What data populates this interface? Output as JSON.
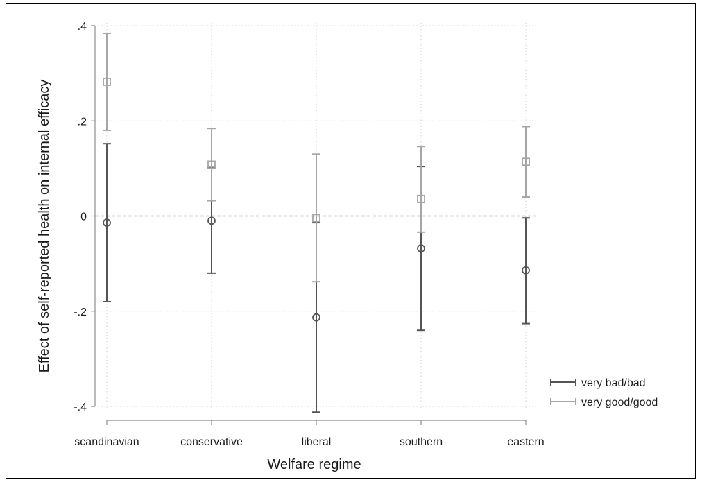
{
  "chart_data": {
    "type": "scatter",
    "subtype": "point-with-confidence-interval",
    "title": "",
    "xlabel": "Welfare regime",
    "ylabel": "Effect of self-reported health on internal efficacy",
    "categories": [
      "scandinavian",
      "conservative",
      "liberal",
      "southern",
      "eastern"
    ],
    "ylim": [
      -0.4,
      0.4
    ],
    "yticks": [
      -0.4,
      -0.2,
      0,
      0.2,
      0.4
    ],
    "ytick_labels": [
      "-.4",
      "-.2",
      "0",
      ".2",
      ".4"
    ],
    "reference_line": {
      "y": 0,
      "style": "dashed"
    },
    "grid": true,
    "legend_position": "right",
    "series": [
      {
        "name": "very bad/bad",
        "marker": "circle",
        "color": "#555555",
        "values": [
          -0.014,
          -0.01,
          -0.213,
          -0.068,
          -0.114
        ],
        "lower": [
          -0.18,
          -0.12,
          -0.412,
          -0.24,
          -0.226
        ],
        "upper": [
          0.152,
          0.102,
          -0.014,
          0.104,
          -0.004
        ]
      },
      {
        "name": "very good/good",
        "marker": "square",
        "color": "#a6a6a6",
        "values": [
          0.282,
          0.108,
          -0.004,
          0.036,
          0.114
        ],
        "lower": [
          0.18,
          0.032,
          -0.138,
          -0.034,
          0.04
        ],
        "upper": [
          0.384,
          0.184,
          0.13,
          0.146,
          0.188
        ]
      }
    ]
  }
}
